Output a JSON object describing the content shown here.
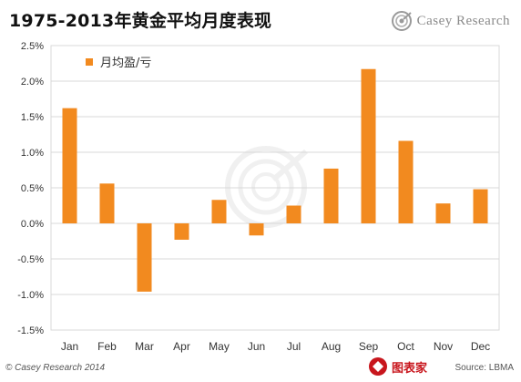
{
  "header": {
    "title": "1975-2013年黄金平均月度表现",
    "brand": "Casey Research",
    "brand_icon": "casey-research-logo-icon"
  },
  "footer": {
    "copyright": "© Casey Research 2014",
    "source": "Source: LBMA",
    "watermark": "图表家",
    "watermark_icon": "tubiaojia-logo-icon"
  },
  "colors": {
    "bar": "#f28a1f",
    "grid": "#d9d9d9",
    "axis_text": "#333333"
  },
  "chart_data": {
    "type": "bar",
    "title": "1975-2013年黄金平均月度表现",
    "xlabel": "",
    "ylabel": "",
    "categories": [
      "Jan",
      "Feb",
      "Mar",
      "Apr",
      "May",
      "Jun",
      "Jul",
      "Aug",
      "Sep",
      "Oct",
      "Nov",
      "Dec"
    ],
    "series": [
      {
        "name": "月均盈/亏",
        "values": [
          1.62,
          0.56,
          -0.96,
          -0.23,
          0.33,
          -0.17,
          0.25,
          0.77,
          2.17,
          1.16,
          0.28,
          0.48
        ]
      }
    ],
    "yticks": [
      "2.5%",
      "2.0%",
      "1.5%",
      "1.0%",
      "0.5%",
      "0.0%",
      "-0.5%",
      "-1.0%",
      "-1.5%"
    ],
    "ylim": [
      -1.5,
      2.5
    ],
    "grid": true,
    "legend_position": "top-left"
  }
}
